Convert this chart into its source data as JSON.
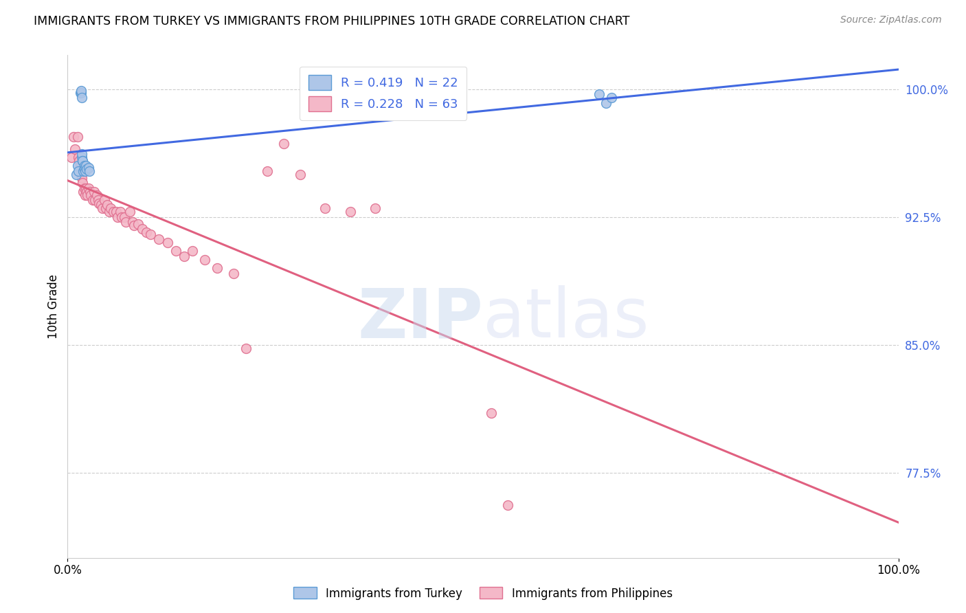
{
  "title": "IMMIGRANTS FROM TURKEY VS IMMIGRANTS FROM PHILIPPINES 10TH GRADE CORRELATION CHART",
  "source": "Source: ZipAtlas.com",
  "ylabel": "10th Grade",
  "y_ticks": [
    0.775,
    0.85,
    0.925,
    1.0
  ],
  "y_tick_labels": [
    "77.5%",
    "85.0%",
    "92.5%",
    "100.0%"
  ],
  "y_tick_color": "#4169e1",
  "turkey_color": "#aec6e8",
  "turkey_edge_color": "#5b9bd5",
  "philippines_color": "#f4b8c8",
  "philippines_edge_color": "#e07090",
  "turkey_line_color": "#4169e1",
  "philippines_line_color": "#e06080",
  "legend_turkey_R": 0.419,
  "legend_turkey_N": 22,
  "legend_philippines_R": 0.228,
  "legend_philippines_N": 63,
  "turkey_x": [
    0.01,
    0.012,
    0.013,
    0.015,
    0.016,
    0.016,
    0.017,
    0.017,
    0.017,
    0.018,
    0.018,
    0.019,
    0.02,
    0.02,
    0.021,
    0.022,
    0.023,
    0.025,
    0.026,
    0.64,
    0.648,
    0.655
  ],
  "turkey_y": [
    0.95,
    0.955,
    0.952,
    0.998,
    0.998,
    0.999,
    0.995,
    0.96,
    0.962,
    0.958,
    0.958,
    0.952,
    0.955,
    0.953,
    0.952,
    0.955,
    0.953,
    0.954,
    0.952,
    0.997,
    0.992,
    0.995
  ],
  "philippines_x": [
    0.005,
    0.007,
    0.009,
    0.012,
    0.013,
    0.014,
    0.015,
    0.016,
    0.017,
    0.018,
    0.019,
    0.02,
    0.021,
    0.022,
    0.023,
    0.024,
    0.025,
    0.027,
    0.028,
    0.03,
    0.032,
    0.033,
    0.035,
    0.037,
    0.038,
    0.04,
    0.042,
    0.044,
    0.046,
    0.048,
    0.05,
    0.052,
    0.055,
    0.058,
    0.06,
    0.063,
    0.065,
    0.068,
    0.07,
    0.075,
    0.078,
    0.08,
    0.085,
    0.09,
    0.095,
    0.1,
    0.11,
    0.12,
    0.13,
    0.14,
    0.15,
    0.165,
    0.18,
    0.2,
    0.215,
    0.24,
    0.26,
    0.28,
    0.31,
    0.34,
    0.37,
    0.51,
    0.53
  ],
  "philippines_y": [
    0.96,
    0.972,
    0.965,
    0.972,
    0.96,
    0.958,
    0.955,
    0.95,
    0.948,
    0.945,
    0.94,
    0.942,
    0.938,
    0.942,
    0.94,
    0.938,
    0.942,
    0.94,
    0.938,
    0.935,
    0.94,
    0.935,
    0.938,
    0.935,
    0.933,
    0.932,
    0.93,
    0.935,
    0.93,
    0.932,
    0.928,
    0.93,
    0.928,
    0.928,
    0.925,
    0.928,
    0.925,
    0.925,
    0.922,
    0.928,
    0.922,
    0.92,
    0.921,
    0.918,
    0.916,
    0.915,
    0.912,
    0.91,
    0.905,
    0.902,
    0.905,
    0.9,
    0.895,
    0.892,
    0.848,
    0.952,
    0.968,
    0.95,
    0.93,
    0.928,
    0.93,
    0.81,
    0.756
  ],
  "marker_size": 100,
  "background_color": "#ffffff",
  "grid_color": "#cccccc",
  "xlim": [
    0.0,
    1.0
  ],
  "ylim": [
    0.725,
    1.02
  ]
}
